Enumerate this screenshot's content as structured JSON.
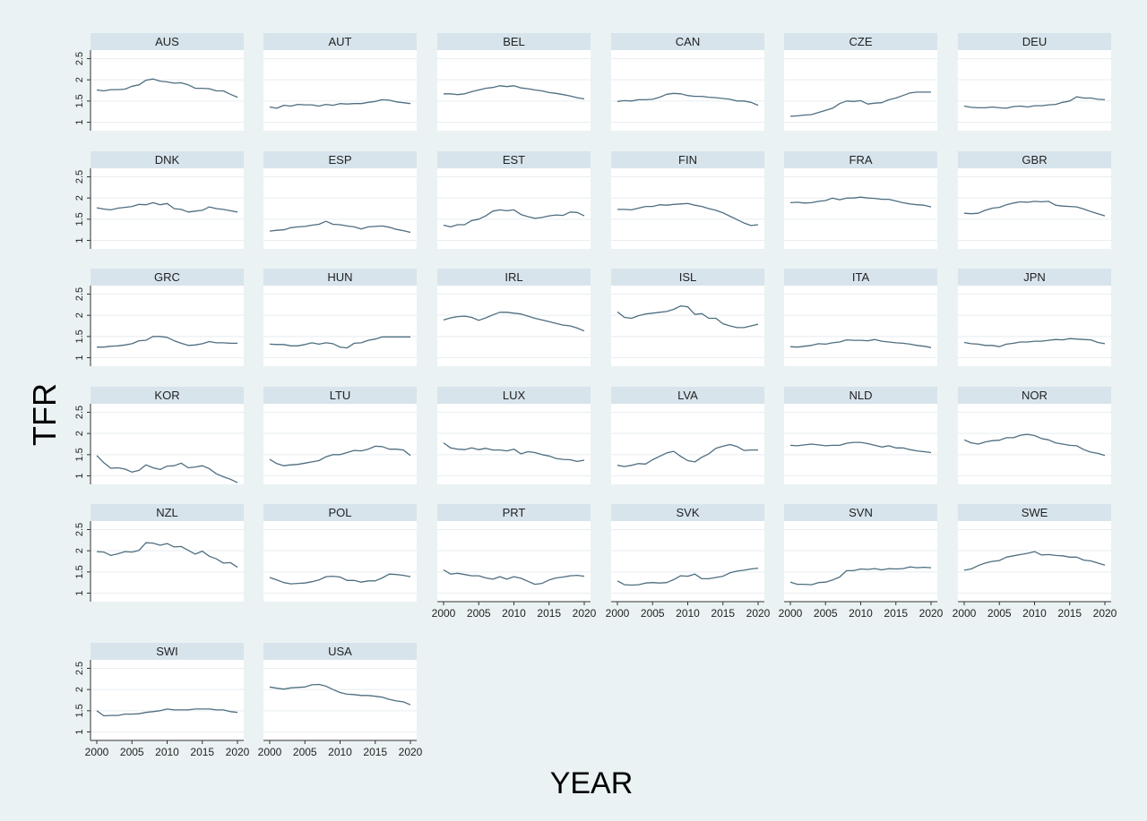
{
  "chart_data": {
    "type": "line",
    "title": "",
    "xlabel": "YEAR",
    "ylabel": "TFR",
    "xlim": [
      2000,
      2020
    ],
    "ylim": [
      0.8,
      2.7
    ],
    "x_ticks": [
      "2000",
      "2005",
      "2010",
      "2015",
      "2020"
    ],
    "y_ticks": [
      "1",
      "1.5",
      "2",
      "2.5"
    ],
    "grid": true,
    "legend": "none",
    "line_color": "#4e6e80",
    "header_color": "#d7e4ec",
    "years": [
      2000,
      2001,
      2002,
      2003,
      2004,
      2005,
      2006,
      2007,
      2008,
      2009,
      2010,
      2011,
      2012,
      2013,
      2014,
      2015,
      2016,
      2017,
      2018,
      2019,
      2020
    ],
    "panels": [
      {
        "name": "AUS",
        "values": [
          1.76,
          1.74,
          1.77,
          1.77,
          1.78,
          1.85,
          1.88,
          1.99,
          2.02,
          1.97,
          1.95,
          1.92,
          1.93,
          1.88,
          1.8,
          1.8,
          1.79,
          1.74,
          1.74,
          1.66,
          1.59
        ]
      },
      {
        "name": "AUT",
        "values": [
          1.36,
          1.33,
          1.4,
          1.38,
          1.42,
          1.41,
          1.41,
          1.38,
          1.42,
          1.4,
          1.44,
          1.43,
          1.44,
          1.44,
          1.47,
          1.49,
          1.53,
          1.52,
          1.48,
          1.46,
          1.44
        ]
      },
      {
        "name": "BEL",
        "values": [
          1.67,
          1.67,
          1.65,
          1.67,
          1.72,
          1.76,
          1.8,
          1.82,
          1.86,
          1.84,
          1.86,
          1.81,
          1.79,
          1.76,
          1.74,
          1.7,
          1.68,
          1.65,
          1.62,
          1.58,
          1.55
        ]
      },
      {
        "name": "CAN",
        "values": [
          1.49,
          1.51,
          1.5,
          1.53,
          1.53,
          1.54,
          1.59,
          1.66,
          1.68,
          1.67,
          1.63,
          1.61,
          1.61,
          1.59,
          1.58,
          1.56,
          1.54,
          1.5,
          1.5,
          1.47,
          1.4
        ]
      },
      {
        "name": "CZE",
        "values": [
          1.14,
          1.15,
          1.17,
          1.18,
          1.23,
          1.28,
          1.33,
          1.44,
          1.5,
          1.49,
          1.51,
          1.43,
          1.45,
          1.46,
          1.53,
          1.57,
          1.63,
          1.69,
          1.71,
          1.71,
          1.71
        ]
      },
      {
        "name": "DEU",
        "values": [
          1.38,
          1.35,
          1.34,
          1.34,
          1.36,
          1.34,
          1.33,
          1.37,
          1.38,
          1.36,
          1.39,
          1.39,
          1.41,
          1.42,
          1.47,
          1.5,
          1.6,
          1.57,
          1.57,
          1.54,
          1.53
        ]
      },
      {
        "name": "DNK",
        "values": [
          1.77,
          1.74,
          1.72,
          1.76,
          1.78,
          1.8,
          1.85,
          1.84,
          1.89,
          1.84,
          1.87,
          1.75,
          1.73,
          1.67,
          1.69,
          1.71,
          1.79,
          1.75,
          1.73,
          1.7,
          1.67
        ]
      },
      {
        "name": "ESP",
        "values": [
          1.22,
          1.24,
          1.25,
          1.3,
          1.32,
          1.33,
          1.36,
          1.38,
          1.45,
          1.38,
          1.37,
          1.34,
          1.32,
          1.27,
          1.32,
          1.33,
          1.34,
          1.31,
          1.26,
          1.23,
          1.19
        ]
      },
      {
        "name": "EST",
        "values": [
          1.36,
          1.32,
          1.37,
          1.37,
          1.47,
          1.5,
          1.58,
          1.69,
          1.72,
          1.7,
          1.72,
          1.61,
          1.56,
          1.52,
          1.54,
          1.58,
          1.6,
          1.59,
          1.67,
          1.66,
          1.58
        ]
      },
      {
        "name": "FIN",
        "values": [
          1.73,
          1.73,
          1.72,
          1.76,
          1.8,
          1.8,
          1.84,
          1.83,
          1.85,
          1.86,
          1.87,
          1.83,
          1.8,
          1.75,
          1.71,
          1.65,
          1.57,
          1.49,
          1.41,
          1.35,
          1.37
        ]
      },
      {
        "name": "FRA",
        "values": [
          1.89,
          1.9,
          1.88,
          1.89,
          1.92,
          1.94,
          2.0,
          1.96,
          2.0,
          2.0,
          2.02,
          2.0,
          1.99,
          1.97,
          1.97,
          1.93,
          1.89,
          1.86,
          1.84,
          1.83,
          1.79
        ]
      },
      {
        "name": "GBR",
        "values": [
          1.64,
          1.63,
          1.64,
          1.71,
          1.76,
          1.78,
          1.84,
          1.88,
          1.91,
          1.9,
          1.92,
          1.91,
          1.92,
          1.83,
          1.81,
          1.8,
          1.79,
          1.74,
          1.68,
          1.63,
          1.58
        ]
      },
      {
        "name": "GRC",
        "values": [
          1.25,
          1.25,
          1.27,
          1.28,
          1.3,
          1.33,
          1.4,
          1.41,
          1.5,
          1.5,
          1.48,
          1.4,
          1.34,
          1.29,
          1.3,
          1.33,
          1.38,
          1.35,
          1.35,
          1.34,
          1.34
        ]
      },
      {
        "name": "HUN",
        "values": [
          1.32,
          1.31,
          1.31,
          1.28,
          1.28,
          1.31,
          1.35,
          1.32,
          1.35,
          1.33,
          1.25,
          1.23,
          1.34,
          1.35,
          1.41,
          1.44,
          1.49,
          1.49,
          1.49,
          1.49,
          1.49
        ]
      },
      {
        "name": "IRL",
        "values": [
          1.89,
          1.94,
          1.97,
          1.98,
          1.95,
          1.88,
          1.94,
          2.01,
          2.07,
          2.07,
          2.05,
          2.03,
          1.98,
          1.93,
          1.89,
          1.85,
          1.81,
          1.77,
          1.75,
          1.7,
          1.63
        ]
      },
      {
        "name": "ISL",
        "values": [
          2.08,
          1.95,
          1.93,
          1.99,
          2.03,
          2.05,
          2.07,
          2.09,
          2.14,
          2.22,
          2.2,
          2.02,
          2.04,
          1.93,
          1.93,
          1.8,
          1.75,
          1.71,
          1.71,
          1.75,
          1.79
        ]
      },
      {
        "name": "ITA",
        "values": [
          1.26,
          1.25,
          1.27,
          1.29,
          1.33,
          1.32,
          1.35,
          1.37,
          1.42,
          1.41,
          1.41,
          1.4,
          1.43,
          1.39,
          1.37,
          1.35,
          1.34,
          1.32,
          1.29,
          1.27,
          1.24
        ]
      },
      {
        "name": "JPN",
        "values": [
          1.36,
          1.33,
          1.32,
          1.29,
          1.29,
          1.26,
          1.32,
          1.34,
          1.37,
          1.37,
          1.39,
          1.39,
          1.41,
          1.43,
          1.42,
          1.45,
          1.44,
          1.43,
          1.42,
          1.36,
          1.33
        ]
      },
      {
        "name": "KOR",
        "values": [
          1.48,
          1.31,
          1.18,
          1.19,
          1.16,
          1.09,
          1.13,
          1.26,
          1.19,
          1.15,
          1.23,
          1.24,
          1.3,
          1.19,
          1.21,
          1.24,
          1.17,
          1.05,
          0.98,
          0.92,
          0.84
        ]
      },
      {
        "name": "LTU",
        "values": [
          1.39,
          1.29,
          1.24,
          1.26,
          1.27,
          1.3,
          1.33,
          1.36,
          1.45,
          1.5,
          1.5,
          1.55,
          1.6,
          1.59,
          1.63,
          1.7,
          1.69,
          1.63,
          1.63,
          1.61,
          1.48
        ]
      },
      {
        "name": "LUX",
        "values": [
          1.78,
          1.66,
          1.63,
          1.62,
          1.66,
          1.62,
          1.65,
          1.61,
          1.61,
          1.59,
          1.63,
          1.52,
          1.57,
          1.55,
          1.5,
          1.47,
          1.41,
          1.39,
          1.38,
          1.34,
          1.37
        ]
      },
      {
        "name": "LVA",
        "values": [
          1.25,
          1.22,
          1.25,
          1.29,
          1.28,
          1.38,
          1.46,
          1.54,
          1.58,
          1.46,
          1.36,
          1.33,
          1.44,
          1.52,
          1.65,
          1.7,
          1.74,
          1.69,
          1.6,
          1.61,
          1.61
        ]
      },
      {
        "name": "NLD",
        "values": [
          1.72,
          1.71,
          1.73,
          1.75,
          1.73,
          1.71,
          1.72,
          1.72,
          1.77,
          1.79,
          1.79,
          1.76,
          1.72,
          1.68,
          1.71,
          1.66,
          1.66,
          1.62,
          1.59,
          1.57,
          1.55
        ]
      },
      {
        "name": "NOR",
        "values": [
          1.85,
          1.78,
          1.75,
          1.8,
          1.83,
          1.84,
          1.9,
          1.9,
          1.96,
          1.98,
          1.95,
          1.88,
          1.85,
          1.78,
          1.75,
          1.72,
          1.71,
          1.62,
          1.56,
          1.53,
          1.48
        ]
      },
      {
        "name": "NZL",
        "values": [
          1.98,
          1.97,
          1.89,
          1.93,
          1.98,
          1.97,
          2.01,
          2.19,
          2.18,
          2.13,
          2.17,
          2.09,
          2.1,
          2.01,
          1.92,
          1.99,
          1.87,
          1.81,
          1.71,
          1.72,
          1.61
        ]
      },
      {
        "name": "POL",
        "values": [
          1.37,
          1.31,
          1.25,
          1.22,
          1.23,
          1.24,
          1.27,
          1.31,
          1.39,
          1.4,
          1.38,
          1.3,
          1.3,
          1.26,
          1.29,
          1.29,
          1.36,
          1.45,
          1.44,
          1.42,
          1.39
        ]
      },
      {
        "name": "PRT",
        "values": [
          1.55,
          1.45,
          1.47,
          1.44,
          1.41,
          1.41,
          1.36,
          1.33,
          1.39,
          1.33,
          1.39,
          1.35,
          1.28,
          1.21,
          1.23,
          1.31,
          1.36,
          1.38,
          1.41,
          1.42,
          1.4
        ]
      },
      {
        "name": "SVK",
        "values": [
          1.29,
          1.2,
          1.19,
          1.2,
          1.24,
          1.25,
          1.24,
          1.25,
          1.32,
          1.41,
          1.4,
          1.45,
          1.34,
          1.34,
          1.37,
          1.4,
          1.48,
          1.52,
          1.54,
          1.57,
          1.59
        ]
      },
      {
        "name": "SVN",
        "values": [
          1.26,
          1.21,
          1.21,
          1.2,
          1.25,
          1.26,
          1.31,
          1.38,
          1.53,
          1.53,
          1.57,
          1.56,
          1.58,
          1.55,
          1.58,
          1.57,
          1.58,
          1.62,
          1.6,
          1.61,
          1.6
        ]
      },
      {
        "name": "SWE",
        "values": [
          1.54,
          1.57,
          1.65,
          1.71,
          1.75,
          1.77,
          1.85,
          1.88,
          1.91,
          1.94,
          1.98,
          1.9,
          1.91,
          1.89,
          1.88,
          1.85,
          1.85,
          1.78,
          1.76,
          1.71,
          1.66
        ]
      },
      {
        "name": "SWI",
        "values": [
          1.5,
          1.38,
          1.39,
          1.39,
          1.42,
          1.42,
          1.43,
          1.46,
          1.48,
          1.5,
          1.54,
          1.52,
          1.52,
          1.52,
          1.54,
          1.54,
          1.54,
          1.52,
          1.52,
          1.48,
          1.46
        ]
      },
      {
        "name": "USA",
        "values": [
          2.06,
          2.03,
          2.01,
          2.04,
          2.05,
          2.06,
          2.11,
          2.12,
          2.08,
          2.0,
          1.93,
          1.89,
          1.88,
          1.86,
          1.86,
          1.84,
          1.82,
          1.77,
          1.73,
          1.71,
          1.64
        ]
      }
    ]
  }
}
